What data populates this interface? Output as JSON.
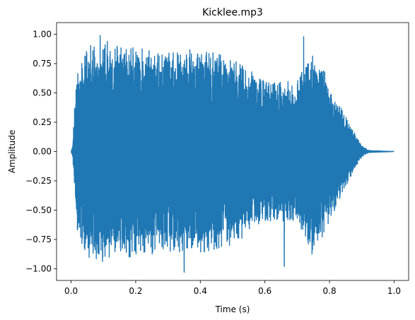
{
  "chart_data": {
    "type": "line",
    "title": "Kicklee.mp3",
    "xlabel": "Time (s)",
    "ylabel": "Amplitude",
    "xlim": [
      -0.045,
      1.045
    ],
    "ylim": [
      -1.1,
      1.1
    ],
    "xticks": [
      0.0,
      0.2,
      0.4,
      0.6,
      0.8,
      1.0
    ],
    "xtick_labels": [
      "0.0",
      "0.2",
      "0.4",
      "0.6",
      "0.8",
      "1.0"
    ],
    "yticks": [
      -1.0,
      -0.75,
      -0.5,
      -0.25,
      0.0,
      0.25,
      0.5,
      0.75,
      1.0
    ],
    "ytick_labels": [
      "−1.00",
      "−0.75",
      "−0.50",
      "−0.25",
      "0.00",
      "0.25",
      "0.50",
      "0.75",
      "1.00"
    ],
    "grid": false,
    "series": [
      {
        "color": "#1f77b4",
        "envelope": {
          "t": [
            0.0,
            0.005,
            0.01,
            0.02,
            0.05,
            0.1,
            0.2,
            0.3,
            0.4,
            0.5,
            0.6,
            0.7,
            0.75,
            0.8,
            0.85,
            0.88,
            0.9,
            0.92,
            1.0
          ],
          "amp": [
            0.0,
            0.05,
            0.35,
            0.7,
            0.9,
            0.95,
            0.9,
            0.85,
            0.88,
            0.8,
            0.6,
            0.6,
            0.9,
            0.6,
            0.3,
            0.15,
            0.05,
            0.01,
            0.0
          ]
        },
        "peaks": [
          {
            "t": 0.09,
            "v": 0.99
          },
          {
            "t": 0.35,
            "v": -1.03
          },
          {
            "t": 0.72,
            "v": 0.98
          },
          {
            "t": 0.66,
            "v": -0.98
          }
        ]
      }
    ]
  }
}
